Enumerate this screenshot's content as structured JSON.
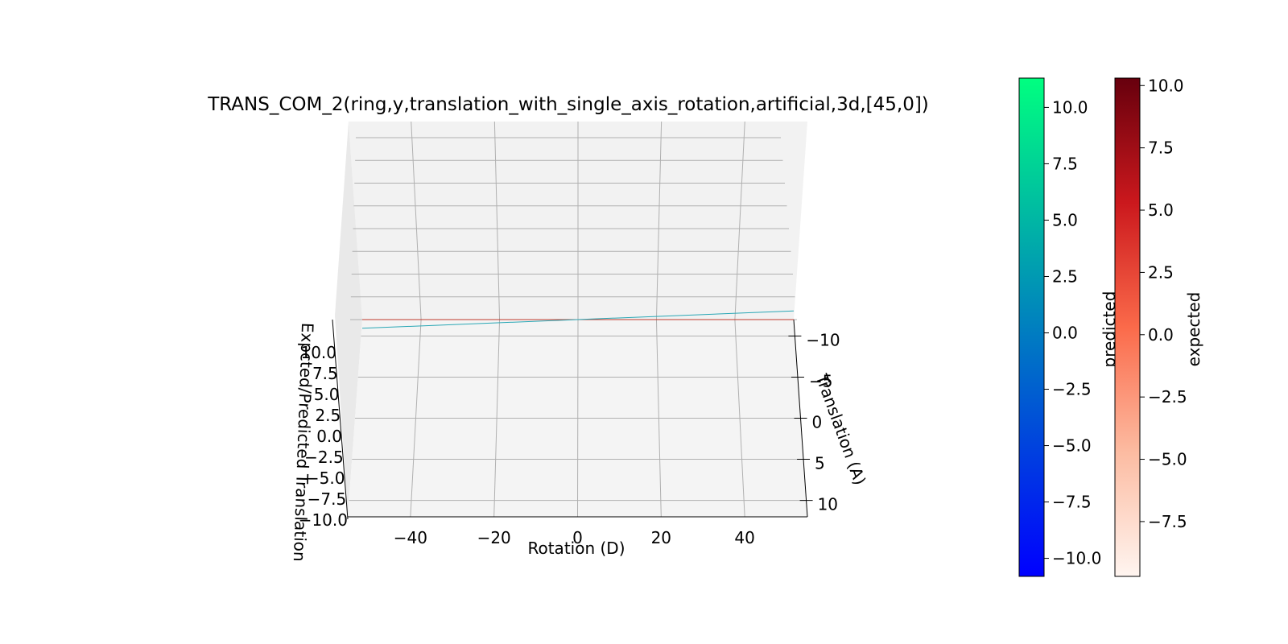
{
  "chart_data": {
    "type": "surface3d",
    "title": "TRANS_COM_2(ring,y,translation_with_single_axis_rotation,artificial,3d,[45,0])",
    "xlabel": "Rotation (D)",
    "ylabel": "Translation (A)",
    "zlabel": "Expcted/Predicted Translation",
    "xlim": [
      -55,
      55
    ],
    "ylim": [
      -12,
      12
    ],
    "zlim": [
      -10,
      10
    ],
    "x_ticks": [
      -40,
      -20,
      0,
      20,
      40
    ],
    "y_ticks": [
      -10,
      -5,
      0,
      5,
      10
    ],
    "z_ticks": [
      10.0,
      7.5,
      5.0,
      2.5,
      0.0,
      -2.5,
      -5.0,
      -7.5,
      -10.0
    ],
    "grid": true,
    "series": [
      {
        "name": "expected",
        "colormap": "Reds",
        "color": "#c0392b",
        "points": [
          {
            "x": -55,
            "z": 0.0
          },
          {
            "x": 55,
            "z": 0.0
          }
        ]
      },
      {
        "name": "predicted",
        "colormap": "winter",
        "color": "#2aa7b5",
        "points": [
          {
            "x": -55,
            "z": -0.9
          },
          {
            "x": 55,
            "z": 0.9
          }
        ]
      }
    ],
    "colorbars": [
      {
        "label": "predicted",
        "range": [
          -10.8,
          11.3
        ],
        "ticks": [
          10.0,
          7.5,
          5.0,
          2.5,
          0.0,
          -2.5,
          -5.0,
          -7.5,
          -10.0
        ],
        "colors": [
          "#0000ff",
          "#00ff80"
        ]
      },
      {
        "label": "expected",
        "range": [
          -9.7,
          10.3
        ],
        "ticks": [
          10.0,
          7.5,
          5.0,
          2.5,
          0.0,
          -2.5,
          -5.0,
          -7.5
        ],
        "colors": [
          "#fff5f0",
          "#fcbba1",
          "#fb6a4a",
          "#cb181d",
          "#67000d"
        ]
      }
    ]
  }
}
